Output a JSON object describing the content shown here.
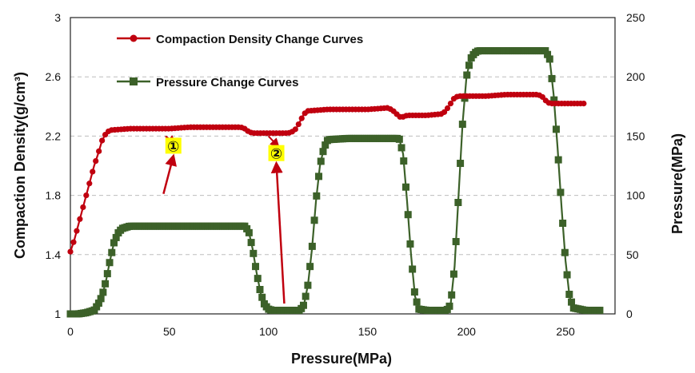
{
  "chart_data": {
    "type": "line",
    "xlabel": "Pressure(MPa)",
    "ylabel_left": "Compaction Density(g/cm³)",
    "ylabel_right": "Pressure(MPa)",
    "xlim": [
      0,
      275
    ],
    "ylim_left": [
      1,
      3
    ],
    "ylim_right": [
      0,
      250
    ],
    "x_ticks": [
      "0",
      "50",
      "100",
      "150",
      "200",
      "250"
    ],
    "y_left_ticks": [
      "1",
      "1.4",
      "1.8",
      "2.2",
      "2.6",
      "3"
    ],
    "y_right_ticks": [
      "0",
      "50",
      "100",
      "150",
      "200",
      "250"
    ],
    "grid": "horizontal dashed",
    "legend": {
      "position": "top-left",
      "entries": [
        "Compaction Density Change Curves",
        "Pressure Change Curves"
      ]
    },
    "colors": {
      "density": "#c0000f",
      "pressure": "#3c6129",
      "arrow": "#c0000f",
      "callout_bg": "#ffff00"
    },
    "series": [
      {
        "name": "Compaction Density Change Curves",
        "axis": "left",
        "marker": "circle",
        "x": [
          0,
          2,
          4,
          6,
          8,
          10,
          12,
          14,
          16,
          18,
          20,
          30,
          40,
          50,
          60,
          70,
          80,
          86,
          88,
          90,
          92,
          95,
          100,
          105,
          110,
          112,
          114,
          116,
          118,
          120,
          130,
          140,
          150,
          160,
          162,
          164,
          166,
          168,
          170,
          180,
          188,
          190,
          192,
          194,
          196,
          200,
          210,
          220,
          230,
          236,
          238,
          240,
          242,
          244,
          250,
          260
        ],
        "values": [
          1.42,
          1.5,
          1.6,
          1.7,
          1.8,
          1.9,
          2.0,
          2.08,
          2.17,
          2.22,
          2.24,
          2.25,
          2.25,
          2.25,
          2.26,
          2.26,
          2.26,
          2.26,
          2.25,
          2.23,
          2.22,
          2.22,
          2.22,
          2.22,
          2.22,
          2.23,
          2.25,
          2.3,
          2.35,
          2.37,
          2.38,
          2.38,
          2.38,
          2.39,
          2.38,
          2.36,
          2.33,
          2.33,
          2.34,
          2.34,
          2.35,
          2.38,
          2.42,
          2.46,
          2.47,
          2.47,
          2.47,
          2.48,
          2.48,
          2.48,
          2.47,
          2.44,
          2.42,
          2.42,
          2.42,
          2.42
        ]
      },
      {
        "name": "Pressure Change Curves",
        "axis": "right",
        "marker": "square",
        "x": [
          0,
          4,
          8,
          12,
          14,
          16,
          18,
          20,
          22,
          24,
          26,
          28,
          30,
          40,
          50,
          60,
          70,
          80,
          88,
          90,
          92,
          94,
          96,
          98,
          100,
          102,
          110,
          116,
          118,
          120,
          122,
          124,
          126,
          128,
          130,
          140,
          150,
          160,
          166,
          168,
          170,
          172,
          174,
          176,
          180,
          190,
          192,
          194,
          196,
          198,
          200,
          202,
          204,
          206,
          220,
          240,
          242,
          244,
          246,
          248,
          250,
          252,
          254,
          260,
          268
        ],
        "values": [
          0,
          0,
          1,
          3,
          8,
          15,
          28,
          45,
          60,
          68,
          72,
          73,
          74,
          74,
          74,
          74,
          74,
          74,
          74,
          70,
          55,
          35,
          18,
          8,
          4,
          3,
          3,
          3,
          8,
          25,
          55,
          95,
          125,
          140,
          147,
          148,
          148,
          148,
          148,
          135,
          95,
          50,
          15,
          4,
          3,
          3,
          8,
          40,
          100,
          160,
          200,
          215,
          220,
          222,
          222,
          222,
          215,
          185,
          140,
          90,
          45,
          15,
          5,
          3,
          3
        ]
      }
    ],
    "annotations": [
      {
        "label": "①",
        "at": [
          52,
          2.13
        ],
        "arrow_from": [
          47,
          1.81
        ],
        "leader_from": [
          48,
          2.2
        ],
        "leader_to": [
          53,
          2.15
        ]
      },
      {
        "label": "②",
        "at": [
          104,
          2.08
        ],
        "arrow_from": [
          108,
          1.07
        ],
        "leader_from": [
          100,
          2.2
        ],
        "leader_to": [
          105,
          2.13
        ]
      }
    ]
  }
}
